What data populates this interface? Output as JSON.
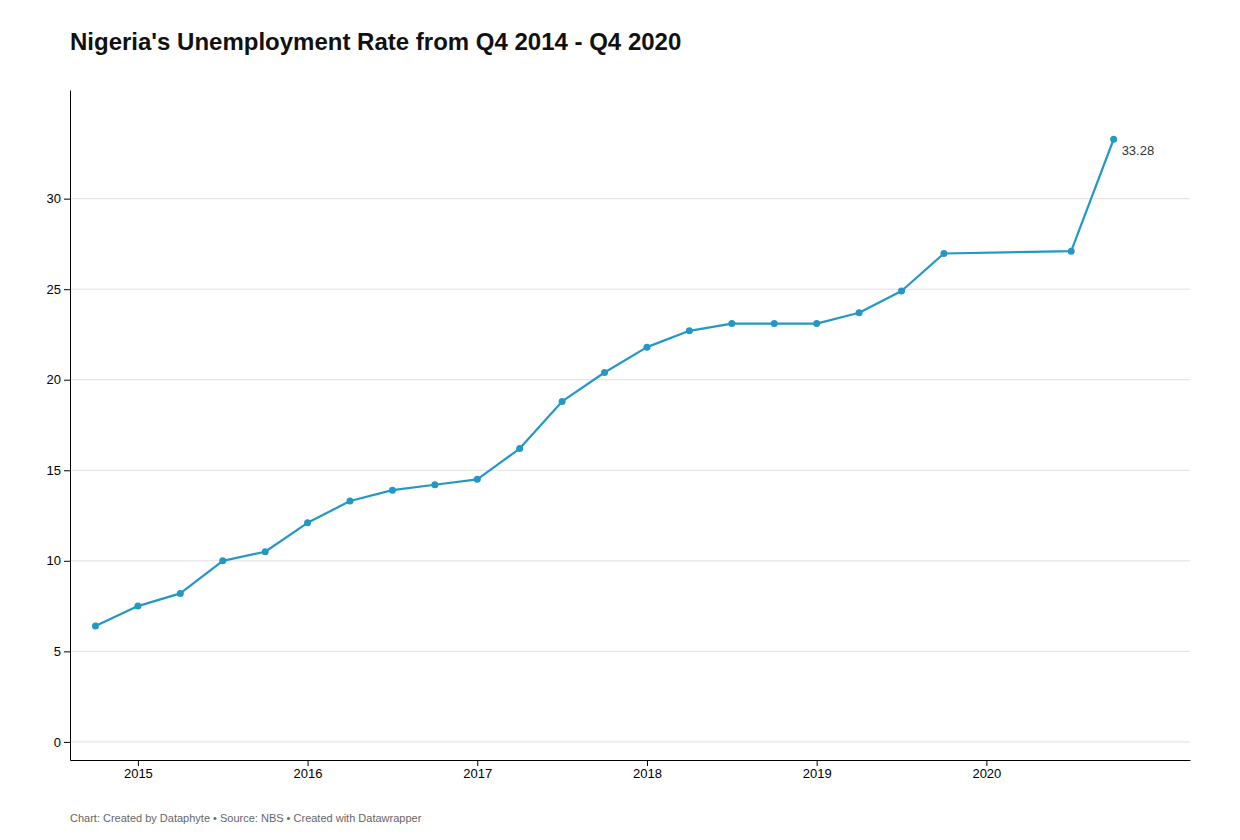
{
  "chart_data": {
    "type": "line",
    "title": "Nigeria's Unemployment Rate from Q4 2014 - Q4 2020",
    "caption": "Chart: Created by Dataphyte • Source: NBS • Created with Datawrapper",
    "x": [
      2014.75,
      2015.0,
      2015.25,
      2015.5,
      2015.75,
      2016.0,
      2016.25,
      2016.5,
      2016.75,
      2017.0,
      2017.25,
      2017.5,
      2017.75,
      2018.0,
      2018.25,
      2018.5,
      2018.75,
      2019.0,
      2019.25,
      2019.5,
      2019.75,
      2020.5,
      2020.75
    ],
    "values": [
      6.4,
      7.5,
      8.2,
      10.0,
      10.5,
      12.1,
      13.3,
      13.9,
      14.2,
      14.5,
      16.2,
      18.8,
      20.4,
      21.8,
      22.7,
      23.1,
      23.1,
      23.1,
      23.7,
      24.9,
      26.97,
      27.1,
      33.28
    ],
    "color": "#2398C4",
    "marker": "circle",
    "xlim": [
      2014.6,
      2021.2
    ],
    "ylim": [
      -1.0,
      36
    ],
    "xticks": [
      2015,
      2016,
      2017,
      2018,
      2019,
      2020
    ],
    "yticks": [
      0,
      5,
      10,
      15,
      20,
      25,
      30
    ],
    "grid": true,
    "annotations": [
      {
        "text": "33.28",
        "x": 2020.75,
        "y": 33.28
      }
    ]
  }
}
